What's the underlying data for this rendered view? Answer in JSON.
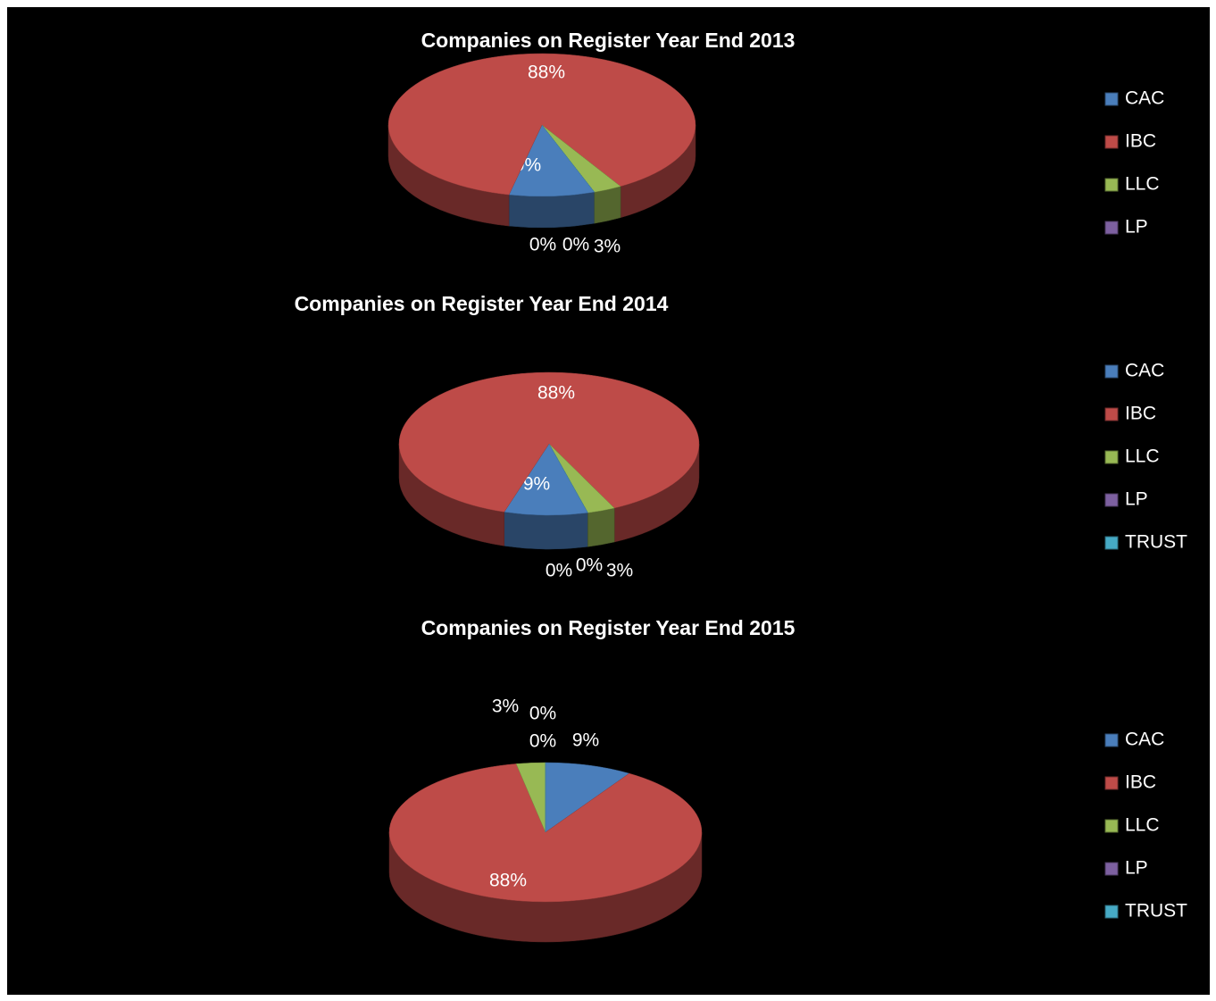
{
  "chart_data": [
    {
      "type": "pie3d",
      "title": "Companies on Register Year End 2013",
      "categories": [
        "CAC",
        "IBC",
        "LLC",
        "LP",
        null
      ],
      "values": [
        9,
        88,
        3,
        0,
        0
      ],
      "value_labels": [
        "9%",
        "88%",
        "3%",
        "0%",
        "0%"
      ],
      "colors": [
        "#4a7ebb",
        "#be4b48",
        "#98b954",
        "#7d60a0",
        "#46aac5"
      ],
      "legend": "right"
    },
    {
      "type": "pie3d",
      "title": "Companies on Register Year End 2014",
      "categories": [
        "CAC",
        "IBC",
        "LLC",
        "LP",
        "TRUST"
      ],
      "values": [
        9,
        88,
        3,
        0,
        0
      ],
      "value_labels": [
        "9%",
        "88%",
        "3%",
        "0%",
        "0%"
      ],
      "colors": [
        "#4a7ebb",
        "#be4b48",
        "#98b954",
        "#7d60a0",
        "#46aac5"
      ],
      "legend": "right"
    },
    {
      "type": "pie3d",
      "title": "Companies on Register Year End 2015",
      "categories": [
        "CAC",
        "IBC",
        "LLC",
        "LP",
        "TRUST"
      ],
      "values": [
        9,
        88,
        3,
        0,
        0
      ],
      "value_labels": [
        "9%",
        "88%",
        "3%",
        "0%",
        "0%"
      ],
      "colors": [
        "#4a7ebb",
        "#be4b48",
        "#98b954",
        "#7d60a0",
        "#46aac5"
      ],
      "legend": "right"
    }
  ]
}
